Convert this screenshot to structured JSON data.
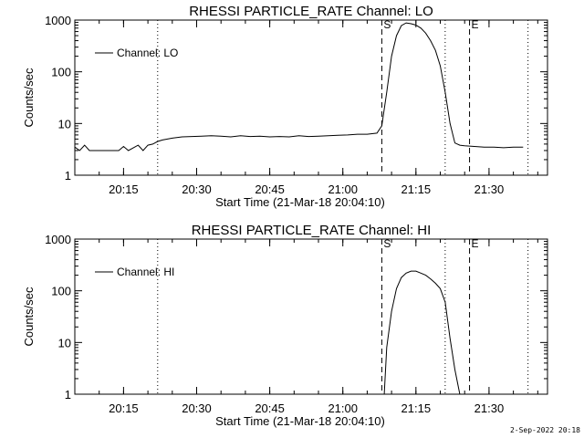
{
  "footer_timestamp": "2-Sep-2022 20:18",
  "chart_data": [
    {
      "type": "line",
      "title": "RHESSI PARTICLE_RATE Channel: LO",
      "xlabel": "Start Time (21-Mar-18 20:04:10)",
      "ylabel": "Counts/sec",
      "yscale": "log",
      "ylim": [
        1,
        1000
      ],
      "y_ticks": [
        "1",
        "10",
        "100",
        "1000"
      ],
      "xlim": [
        "20:05",
        "21:42"
      ],
      "x_ticks": [
        "20:15",
        "20:30",
        "20:45",
        "21:00",
        "21:15",
        "21:30"
      ],
      "legend": {
        "placement": "top-left",
        "entries": [
          "Channel: LO"
        ]
      },
      "markers": [
        {
          "label": "S",
          "time": "21:08",
          "style": "dashed"
        },
        {
          "label": "E",
          "time": "21:26",
          "style": "dashed"
        }
      ],
      "vertical_lines_dotted": [
        "20:22",
        "21:21",
        "21:38"
      ],
      "series": [
        {
          "name": "Channel: LO",
          "x": [
            "20:05",
            "20:06",
            "20:07",
            "20:08",
            "20:10",
            "20:14",
            "20:15",
            "20:16",
            "20:18",
            "20:19",
            "20:20",
            "20:21",
            "20:22",
            "20:23",
            "20:25",
            "20:27",
            "20:29",
            "20:31",
            "20:33",
            "20:35",
            "20:37",
            "20:39",
            "20:41",
            "20:43",
            "20:45",
            "20:47",
            "20:49",
            "20:51",
            "20:53",
            "20:55",
            "20:57",
            "20:59",
            "21:01",
            "21:03",
            "21:05",
            "21:07",
            "21:08",
            "21:09",
            "21:10",
            "21:11",
            "21:12",
            "21:13",
            "21:14",
            "21:15",
            "21:16",
            "21:17",
            "21:18",
            "21:19",
            "21:20",
            "21:21",
            "21:22",
            "21:23",
            "21:24",
            "21:25",
            "21:27",
            "21:29",
            "21:31",
            "21:33",
            "21:35",
            "21:37"
          ],
          "y": [
            3.5,
            3.0,
            3.8,
            3.0,
            3.0,
            3.0,
            3.6,
            3.0,
            3.8,
            3.0,
            3.8,
            4.0,
            4.5,
            4.8,
            5.2,
            5.5,
            5.6,
            5.7,
            5.8,
            5.7,
            5.5,
            5.8,
            5.6,
            5.7,
            5.5,
            5.6,
            5.5,
            5.8,
            5.6,
            5.7,
            5.8,
            5.9,
            6.0,
            6.2,
            6.2,
            6.5,
            9,
            40,
            200,
            500,
            780,
            880,
            850,
            800,
            700,
            560,
            400,
            260,
            130,
            40,
            10,
            4.2,
            3.8,
            3.7,
            3.6,
            3.5,
            3.5,
            3.4,
            3.5,
            3.5
          ]
        }
      ]
    },
    {
      "type": "line",
      "title": "RHESSI PARTICLE_RATE Channel: HI",
      "xlabel": "Start Time (21-Mar-18 20:04:10)",
      "ylabel": "Counts/sec",
      "yscale": "log",
      "ylim": [
        1,
        1000
      ],
      "y_ticks": [
        "1",
        "10",
        "100",
        "1000"
      ],
      "xlim": [
        "20:05",
        "21:42"
      ],
      "x_ticks": [
        "20:15",
        "20:30",
        "20:45",
        "21:00",
        "21:15",
        "21:30"
      ],
      "legend": {
        "placement": "top-left",
        "entries": [
          "Channel: HI"
        ]
      },
      "markers": [
        {
          "label": "S",
          "time": "21:08",
          "style": "dashed"
        },
        {
          "label": "E",
          "time": "21:26",
          "style": "dashed"
        }
      ],
      "vertical_lines_dotted": [
        "20:22",
        "21:21",
        "21:38"
      ],
      "series": [
        {
          "name": "Channel: HI",
          "x": [
            "21:08.5",
            "21:09",
            "21:10",
            "21:11",
            "21:12",
            "21:13",
            "21:14",
            "21:15",
            "21:16",
            "21:17",
            "21:18",
            "21:19",
            "21:20",
            "21:21",
            "21:22",
            "21:23",
            "21:24"
          ],
          "y": [
            1.0,
            8,
            40,
            110,
            180,
            220,
            240,
            240,
            220,
            200,
            170,
            140,
            110,
            60,
            12,
            3,
            1.0
          ]
        }
      ]
    }
  ]
}
